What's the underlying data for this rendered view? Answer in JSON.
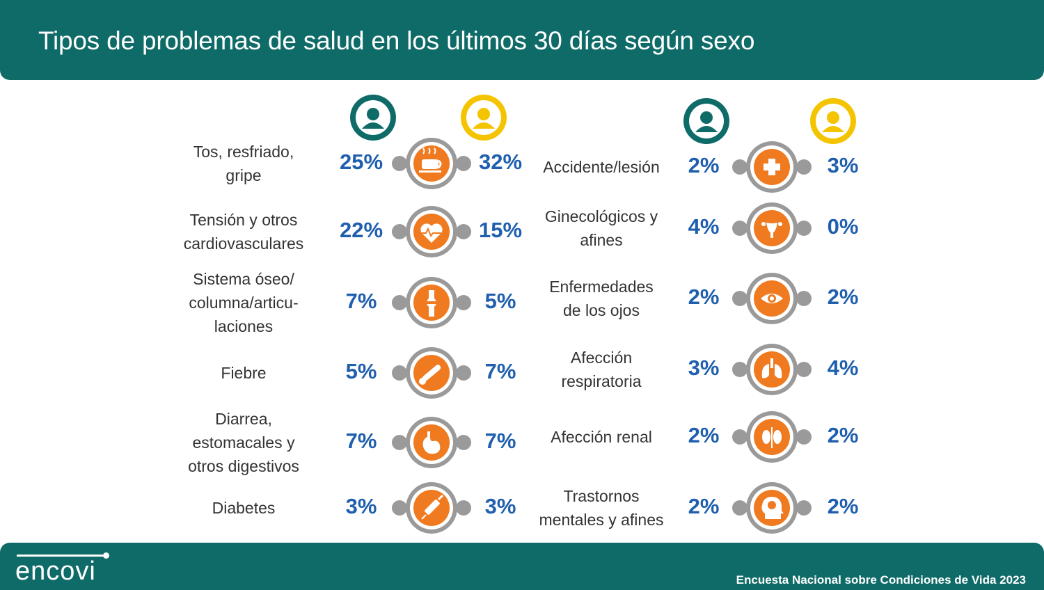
{
  "title": "Tipos de problemas de salud en los últimos 30 días según sexo",
  "footer": {
    "logo": "encovi",
    "source": "Encuesta Nacional sobre Condiciones de Vida 2023"
  },
  "colors": {
    "teal": "#0f6b68",
    "female": "#0f6b68",
    "male": "#f5c400",
    "icon": "#f07a1f",
    "ring": "#9a9a9a",
    "value": "#1f5fae"
  },
  "legend": {
    "female_icon": "woman-icon",
    "male_icon": "man-icon"
  },
  "left_items": [
    {
      "label": "Tos, resfriado,\ngripe",
      "female": "25%",
      "male": "32%",
      "icon": "coffee-cup-icon"
    },
    {
      "label": "Tensión y otros\ncardiovasculares",
      "female": "22%",
      "male": "15%",
      "icon": "heart-pulse-icon"
    },
    {
      "label": "Sistema óseo/\ncolumna/articu-\nlaciones",
      "female": "7%",
      "male": "5%",
      "icon": "joint-bone-icon"
    },
    {
      "label": "Fiebre",
      "female": "5%",
      "male": "7%",
      "icon": "thermometer-icon"
    },
    {
      "label": "Diarrea,\nestomacales y\notros digestivos",
      "female": "7%",
      "male": "7%",
      "icon": "stomach-icon"
    },
    {
      "label": "Diabetes",
      "female": "3%",
      "male": "3%",
      "icon": "syringe-icon"
    }
  ],
  "right_items": [
    {
      "label": "Accidente/lesión",
      "female": "2%",
      "male": "3%",
      "icon": "medical-cross-icon"
    },
    {
      "label": "Ginecológicos y\nafines",
      "female": "4%",
      "male": "0%",
      "icon": "uterus-icon"
    },
    {
      "label": "Enfermedades\nde los ojos",
      "female": "2%",
      "male": "2%",
      "icon": "eye-icon"
    },
    {
      "label": "Afección\nrespiratoria",
      "female": "3%",
      "male": "4%",
      "icon": "lungs-icon"
    },
    {
      "label": "Afección renal",
      "female": "2%",
      "male": "2%",
      "icon": "kidneys-icon"
    },
    {
      "label": "Trastornos\nmentales y afines",
      "female": "2%",
      "male": "2%",
      "icon": "brain-head-icon"
    }
  ]
}
